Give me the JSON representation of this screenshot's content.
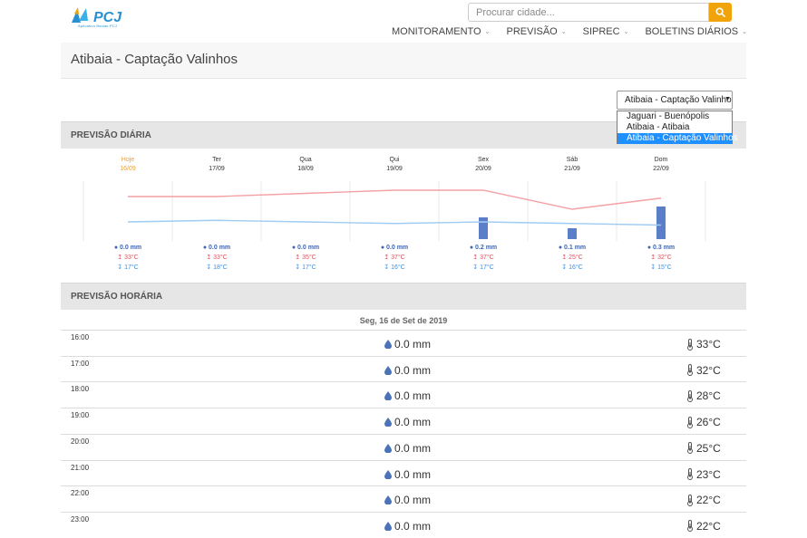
{
  "header": {
    "logo_text": "PCJ",
    "logo_subtext": "Aplicativo Bacias PCJ",
    "search_placeholder": "Procurar cidade...",
    "nav": [
      {
        "label": "MONITORAMENTO"
      },
      {
        "label": "PREVISÃO"
      },
      {
        "label": "SIPREC"
      },
      {
        "label": "BOLETINS DIÁRIOS"
      }
    ]
  },
  "page_title": "Atibaia - Captação Valinhos",
  "station_select": {
    "selected": "Atibaia - Captação Valinhos",
    "options": [
      "Jaguari - Buenópolis",
      "Atibaia - Atibaia",
      "Atibaia - Captação Valinhos"
    ]
  },
  "daily": {
    "section_title": "PREVISÃO DIÁRIA",
    "days": [
      {
        "name": "Hoje",
        "date": "16/09",
        "rain": "0.0 mm",
        "max": "33°C",
        "min": "17°C"
      },
      {
        "name": "Ter",
        "date": "17/09",
        "rain": "0.0 mm",
        "max": "33°C",
        "min": "18°C"
      },
      {
        "name": "Qua",
        "date": "18/09",
        "rain": "0.0 mm",
        "max": "35°C",
        "min": "17°C"
      },
      {
        "name": "Qui",
        "date": "19/09",
        "rain": "0.0 mm",
        "max": "37°C",
        "min": "16°C"
      },
      {
        "name": "Sex",
        "date": "20/09",
        "rain": "0.2 mm",
        "max": "37°C",
        "min": "17°C"
      },
      {
        "name": "Sáb",
        "date": "21/09",
        "rain": "0.1 mm",
        "max": "25°C",
        "min": "16°C"
      },
      {
        "name": "Dom",
        "date": "22/09",
        "rain": "0.3 mm",
        "max": "32°C",
        "min": "15°C"
      }
    ]
  },
  "chart_data": {
    "type": "line",
    "categories": [
      "16/09",
      "17/09",
      "18/09",
      "19/09",
      "20/09",
      "21/09",
      "22/09"
    ],
    "series": [
      {
        "values": [
          33,
          33,
          35,
          37,
          37,
          25,
          32
        ],
        "color": "#f4a0a4"
      },
      {
        "values": [
          17,
          18,
          17,
          16,
          17,
          16,
          15
        ],
        "color": "#9fccf2"
      },
      {
        "values": [
          0.0,
          0.0,
          0.0,
          0.0,
          0.2,
          0.1,
          0.3
        ],
        "color": "#5b7ec8"
      }
    ]
  },
  "hourly": {
    "section_title": "PREVISÃO HORÁRIA",
    "date_label": "Seg, 16 de Set de 2019",
    "rows": [
      {
        "time": "16:00",
        "rain": "0.0 mm",
        "temp": "33°C"
      },
      {
        "time": "17:00",
        "rain": "0.0 mm",
        "temp": "32°C"
      },
      {
        "time": "18:00",
        "rain": "0.0 mm",
        "temp": "28°C"
      },
      {
        "time": "19:00",
        "rain": "0.0 mm",
        "temp": "26°C"
      },
      {
        "time": "20:00",
        "rain": "0.0 mm",
        "temp": "25°C"
      },
      {
        "time": "21:00",
        "rain": "0.0 mm",
        "temp": "23°C"
      },
      {
        "time": "22:00",
        "rain": "0.0 mm",
        "temp": "22°C"
      },
      {
        "time": "23:00",
        "rain": "0.0 mm",
        "temp": "22°C"
      }
    ]
  }
}
